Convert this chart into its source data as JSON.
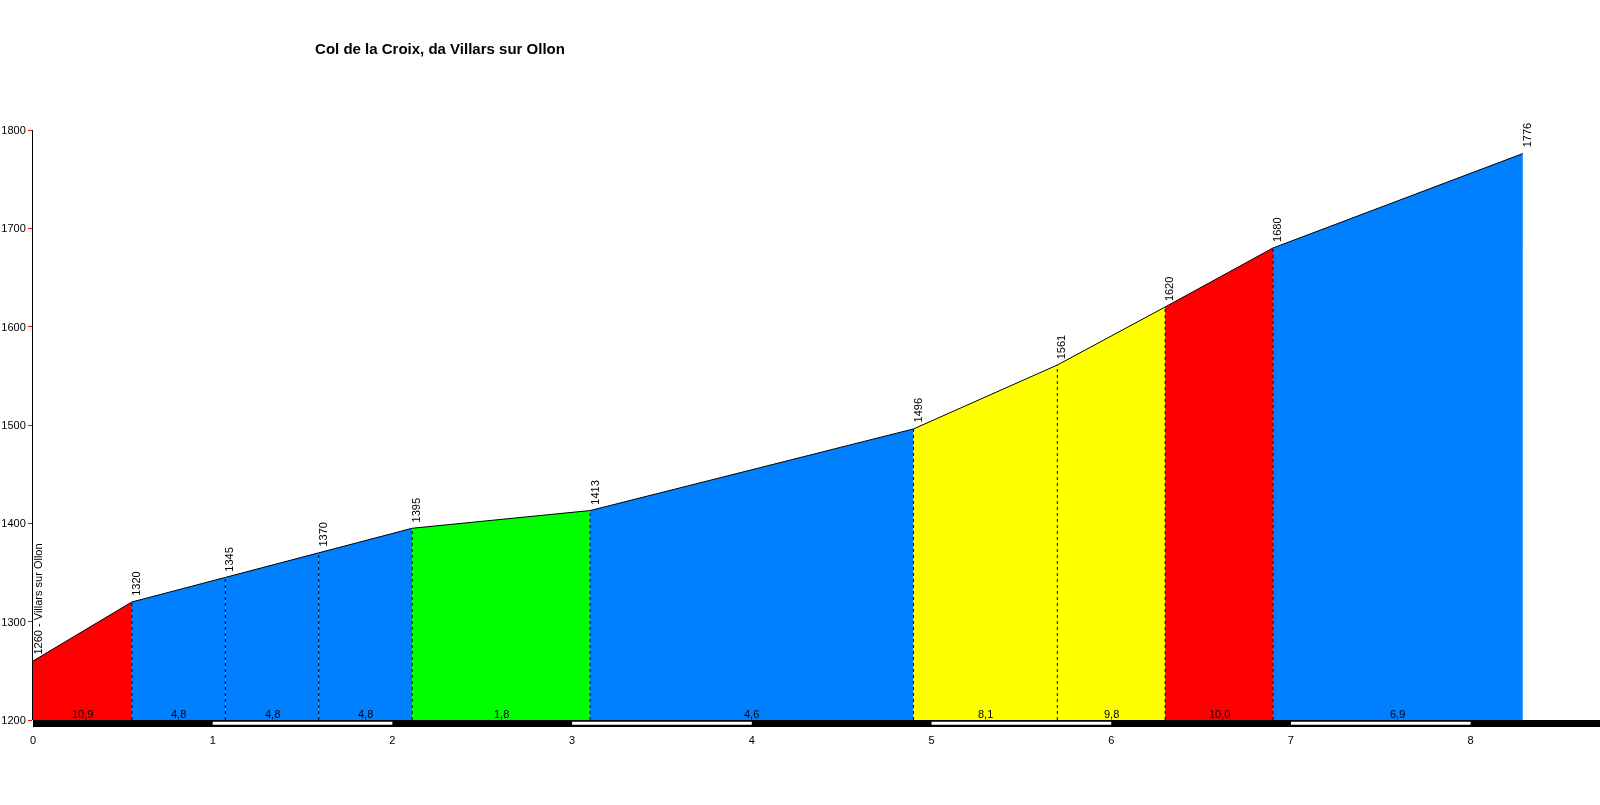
{
  "chart_data": {
    "type": "area",
    "title": "Col de la Croix, da Villars sur Ollon",
    "legend": false,
    "xlim": [
      0,
      8.72
    ],
    "xticks": [
      0,
      1,
      2,
      3,
      4,
      5,
      6,
      7,
      8
    ],
    "ylim": [
      1200,
      1800
    ],
    "yticks": [
      1200,
      1300,
      1400,
      1500,
      1600,
      1700,
      1800
    ],
    "series": [
      {
        "color": "#ff0000",
        "x": [
          0,
          0.55
        ],
        "values": [
          1260,
          1320
        ]
      },
      {
        "color": "#0080ff",
        "x": [
          0.55,
          1.07
        ],
        "values": [
          1320,
          1345
        ]
      },
      {
        "color": "#0080ff",
        "x": [
          1.07,
          1.59
        ],
        "values": [
          1345,
          1370
        ]
      },
      {
        "color": "#0080ff",
        "x": [
          1.59,
          2.11
        ],
        "values": [
          1370,
          1395
        ]
      },
      {
        "color": "#00ff00",
        "x": [
          2.11,
          3.1
        ],
        "values": [
          1395,
          1413
        ]
      },
      {
        "color": "#0080ff",
        "x": [
          3.1,
          4.9
        ],
        "values": [
          1413,
          1496
        ]
      },
      {
        "color": "#ffff00",
        "x": [
          4.9,
          5.7
        ],
        "values": [
          1496,
          1561
        ]
      },
      {
        "color": "#ffff00",
        "x": [
          5.7,
          6.3
        ],
        "values": [
          1561,
          1620
        ]
      },
      {
        "color": "#ff0000",
        "x": [
          6.3,
          6.9
        ],
        "values": [
          1620,
          1680
        ]
      },
      {
        "color": "#0080ff",
        "x": [
          6.9,
          8.29
        ],
        "values": [
          1680,
          1776
        ]
      }
    ],
    "annotations": [
      {
        "text": "1260 - Villars sur Ollon",
        "x": 0,
        "y": 1260
      },
      {
        "text": "1320",
        "x": 0.55,
        "y": 1320
      },
      {
        "text": "1345",
        "x": 1.07,
        "y": 1345
      },
      {
        "text": "1370",
        "x": 1.59,
        "y": 1370
      },
      {
        "text": "1395",
        "x": 2.11,
        "y": 1395
      },
      {
        "text": "1413",
        "x": 3.1,
        "y": 1413
      },
      {
        "text": "1496",
        "x": 4.9,
        "y": 1496
      },
      {
        "text": "1561",
        "x": 5.7,
        "y": 1561
      },
      {
        "text": "1620",
        "x": 6.3,
        "y": 1620
      },
      {
        "text": "1680",
        "x": 6.9,
        "y": 1680
      },
      {
        "text": "1776",
        "x": 8.29,
        "y": 1776
      },
      "10,9",
      "4,8",
      "4,8",
      "4,8",
      "1,8",
      "4,6",
      "8,1",
      "9,8",
      "10,0",
      "6,9"
    ]
  }
}
